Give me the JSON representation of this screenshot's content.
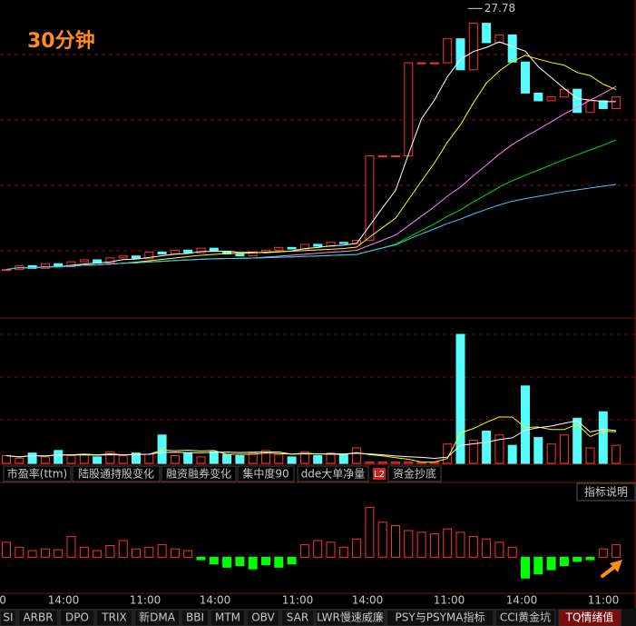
{
  "chart_data": [
    {
      "type": "candlestick",
      "title": "30分钟",
      "peak": 27.78,
      "ylim": [
        19.8,
        28.0
      ],
      "values": [
        21.05,
        21.15,
        21.08,
        21.2,
        21.12,
        21.25,
        21.3,
        21.22,
        21.35,
        21.4,
        21.33,
        21.5,
        21.45,
        21.55,
        21.48,
        21.6,
        21.52,
        21.45,
        21.4,
        21.5,
        21.55,
        21.62,
        21.58,
        21.7,
        21.65,
        21.75,
        21.72,
        21.8,
        23.98,
        23.98,
        23.98,
        26.38,
        26.38,
        26.38,
        27.0,
        26.2,
        27.4,
        26.9,
        27.1,
        26.4,
        25.6,
        25.4,
        25.5,
        25.7,
        25.1,
        25.4,
        25.2,
        25.5
      ]
    },
    {
      "type": "bar",
      "ylim": [
        0,
        100
      ],
      "values": [
        6,
        4,
        8,
        5,
        10,
        6,
        7,
        5,
        9,
        6,
        8,
        7,
        22,
        6,
        8,
        5,
        9,
        7,
        6,
        8,
        10,
        7,
        5,
        9,
        6,
        8,
        7,
        12,
        1,
        1,
        1,
        1,
        1,
        1,
        15,
        100,
        18,
        25,
        22,
        14,
        60,
        20,
        15,
        22,
        35,
        12,
        40,
        14
      ]
    },
    {
      "type": "bar",
      "ylim": [
        -40,
        80
      ],
      "values": [
        18,
        12,
        8,
        10,
        9,
        25,
        12,
        8,
        14,
        20,
        10,
        12,
        15,
        10,
        8,
        -3,
        -8,
        -12,
        -10,
        -14,
        -9,
        -12,
        -8,
        15,
        20,
        18,
        12,
        22,
        60,
        42,
        38,
        32,
        30,
        28,
        34,
        30,
        25,
        22,
        18,
        12,
        -25,
        -20,
        -15,
        -10,
        -5,
        -3,
        10,
        15
      ]
    }
  ],
  "ui": {
    "tabs": [
      "市盈率(ttm)",
      "陆股通持股变化",
      "融资融券变化",
      "集中度90",
      "dde大单净量",
      "资金抄底"
    ],
    "badge": "L2",
    "button": "指标说明",
    "time_labels": [
      "0",
      "14:00",
      "11:00",
      "14:00",
      "11:00",
      "14:00",
      "11:00",
      "14:00",
      "11:00"
    ],
    "bottom_tabs": [
      "SI",
      "ARBR",
      "DPO",
      "TRIX",
      "新DMA",
      "BBI",
      "MTM",
      "OBV",
      "SAR",
      "LWR慢速威廉",
      "PSY与PSYMA指标",
      "CCI黄金坑",
      "TQ情绪值"
    ]
  }
}
